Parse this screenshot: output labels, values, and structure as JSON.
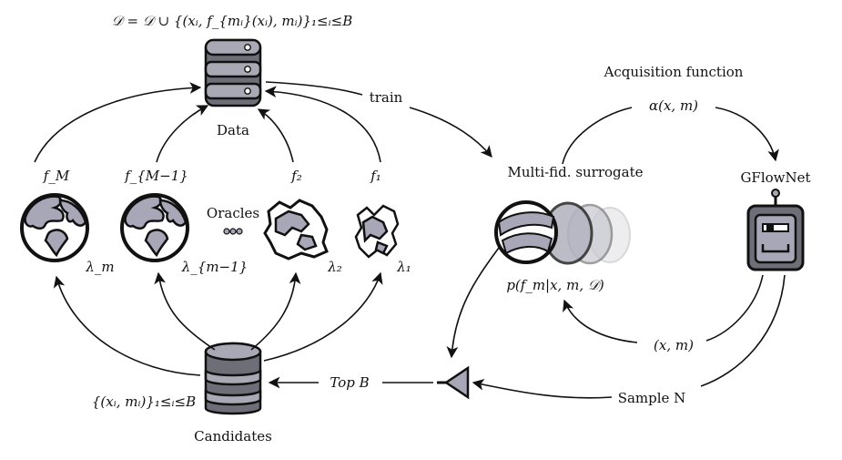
{
  "data_update_formula": "𝒟 = 𝒟 ∪ {(xᵢ, f_{mᵢ}(xᵢ), mᵢ)}₁≤ᵢ≤B",
  "data_label": "Data",
  "candidates_label": "Candidates",
  "candidates_set": "{(xᵢ, mᵢ)}₁≤ᵢ≤B",
  "oracles_label": "Oracles",
  "oracle_functions": [
    "f_M",
    "f_{M−1}",
    "f₂",
    "f₁"
  ],
  "oracle_costs": [
    "λ_m",
    "λ_{m−1}",
    "λ₂",
    "λ₁"
  ],
  "train_label": "train",
  "surrogate_label": "Multi-fid. surrogate",
  "surrogate_posterior": "p(f_m|x, m, 𝒟)",
  "acquisition_title": "Acquisition function",
  "acquisition_formula": "α(x, m)",
  "gflownet_label": "GFlowNet",
  "xm_label": "(x, m)",
  "sample_label": "Sample N",
  "top_label": "Top B"
}
